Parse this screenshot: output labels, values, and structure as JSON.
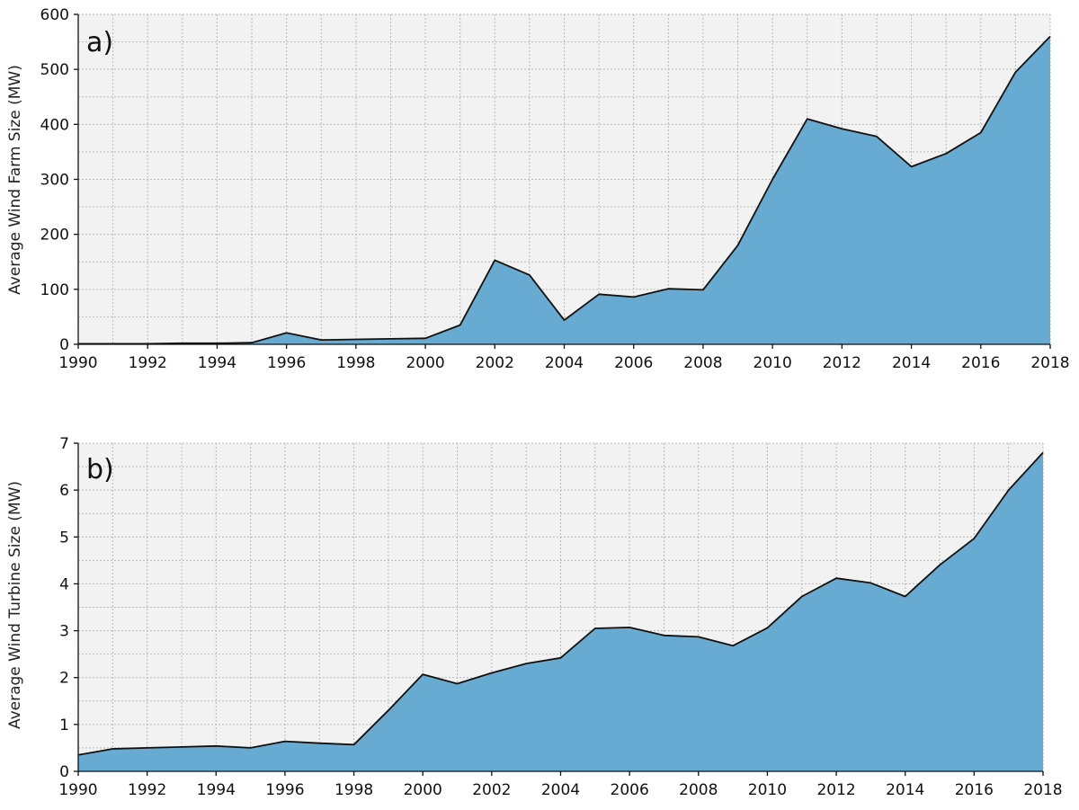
{
  "colors": {
    "area": "#67abd2",
    "plot_background": "#f2f2f2",
    "grid": "#b9b9b9",
    "line": "#111111"
  },
  "chart_data": [
    {
      "type": "area",
      "panel_label": "a)",
      "ylabel": "Average Wind Farm Size (MW)",
      "xlim": [
        1990,
        2018
      ],
      "ylim": [
        0,
        600
      ],
      "x_ticks": [
        1990,
        1992,
        1994,
        1996,
        1998,
        2000,
        2002,
        2004,
        2006,
        2008,
        2010,
        2012,
        2014,
        2016,
        2018
      ],
      "y_ticks": [
        0,
        100,
        200,
        300,
        400,
        500,
        600
      ],
      "grid": true,
      "x": [
        1990,
        1991,
        1992,
        1993,
        1994,
        1995,
        1996,
        1997,
        1998,
        1999,
        2000,
        2001,
        2002,
        2003,
        2004,
        2005,
        2006,
        2007,
        2008,
        2009,
        2010,
        2011,
        2012,
        2013,
        2014,
        2015,
        2016,
        2017,
        2018
      ],
      "values": [
        1,
        1,
        1,
        2,
        2,
        3,
        21,
        8,
        9,
        10,
        11,
        35,
        153,
        126,
        44,
        91,
        86,
        101,
        99,
        180,
        300,
        410,
        392,
        378,
        323,
        347,
        385,
        495,
        560
      ]
    },
    {
      "type": "area",
      "panel_label": "b)",
      "ylabel": "Average Wind Turbine Size (MW)",
      "xlim": [
        1990,
        2018
      ],
      "ylim": [
        0,
        7
      ],
      "x_ticks": [
        1990,
        1992,
        1994,
        1996,
        1998,
        2000,
        2002,
        2004,
        2006,
        2008,
        2010,
        2012,
        2014,
        2016,
        2018
      ],
      "y_ticks": [
        0,
        1,
        2,
        3,
        4,
        5,
        6,
        7
      ],
      "grid": true,
      "x": [
        1990,
        1991,
        1992,
        1993,
        1994,
        1995,
        1996,
        1997,
        1998,
        1999,
        2000,
        2001,
        2002,
        2003,
        2004,
        2005,
        2006,
        2007,
        2008,
        2009,
        2010,
        2011,
        2012,
        2013,
        2014,
        2015,
        2016,
        2017,
        2018
      ],
      "values": [
        0.35,
        0.48,
        0.5,
        0.52,
        0.54,
        0.5,
        0.64,
        0.6,
        0.57,
        1.3,
        2.07,
        1.87,
        2.1,
        2.3,
        2.42,
        3.05,
        3.07,
        2.9,
        2.87,
        2.68,
        3.06,
        3.73,
        4.12,
        4.02,
        3.73,
        4.4,
        4.97,
        6.0,
        6.8
      ]
    }
  ]
}
